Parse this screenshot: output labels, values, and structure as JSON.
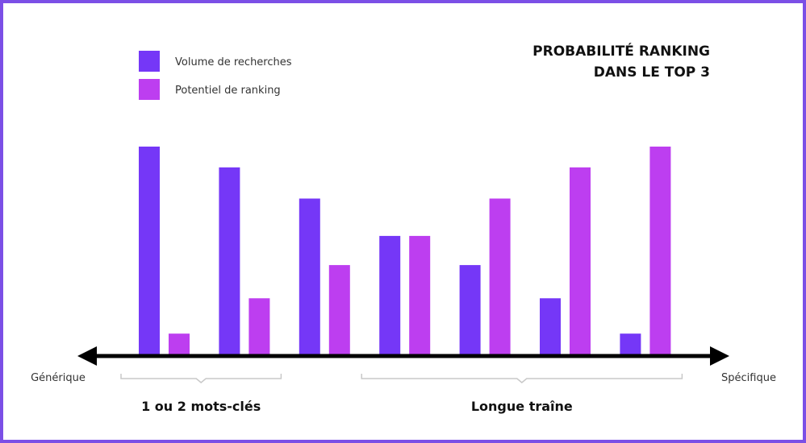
{
  "chart_data": {
    "type": "bar",
    "title_lines": [
      "PROBABILITÉ RANKING",
      "DANS LE TOP 3"
    ],
    "categories": [
      "",
      "",
      "",
      "",
      "",
      "",
      ""
    ],
    "series": [
      {
        "name": "Volume de recherches",
        "color": "#7537f7",
        "values": [
          100,
          90,
          75,
          57,
          43,
          27,
          10
        ]
      },
      {
        "name": "Potentiel de ranking",
        "color": "#bd3ef0",
        "values": [
          10,
          27,
          43,
          57,
          75,
          90,
          100
        ]
      }
    ],
    "ylim": [
      0,
      100
    ],
    "x_axis": {
      "left_label": "Générique",
      "right_label": "Spécifique"
    },
    "groups": [
      {
        "label": "1 ou 2 mots-clés",
        "from_category": 0,
        "to_category": 1
      },
      {
        "label": "Longue traîne",
        "from_category": 3,
        "to_category": 6
      }
    ],
    "grid": false,
    "legend_position": "top-left"
  }
}
